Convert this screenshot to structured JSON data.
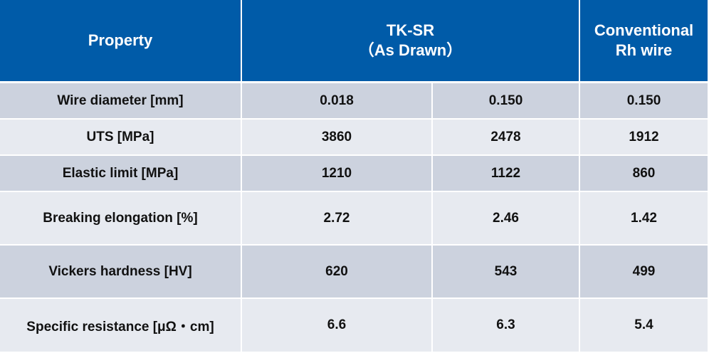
{
  "table": {
    "header": [
      [
        "Property"
      ],
      [
        "TK-SR",
        "（As Drawn）"
      ],
      [
        "Conventional",
        "Rh wire"
      ]
    ],
    "rows": [
      [
        "Wire diameter [mm]",
        "0.018",
        "0.150",
        "0.150"
      ],
      [
        "UTS [MPa]",
        "3860",
        "2478",
        "1912"
      ],
      [
        "Elastic limit [MPa]",
        "1210",
        "1122",
        "860"
      ],
      [
        "Breaking elongation [%]",
        "2.72",
        "2.46",
        "1.42"
      ],
      [
        "Vickers hardness [HV]",
        "620",
        "543",
        "499"
      ],
      [
        "Specific resistance [μΩ・cm]",
        "6.6",
        "6.3",
        "5.4"
      ]
    ]
  }
}
